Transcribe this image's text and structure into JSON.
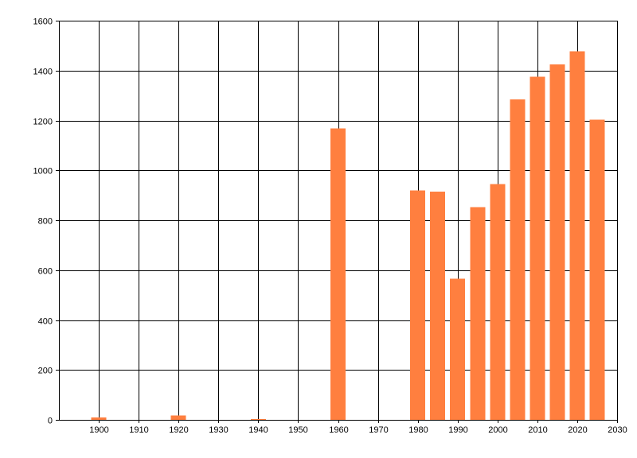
{
  "chart_data": {
    "type": "bar",
    "title": "",
    "xlabel": "",
    "ylabel": "",
    "xlim": [
      1890,
      2030
    ],
    "ylim": [
      0,
      1600
    ],
    "xticks": [
      "1900",
      "1910",
      "1920",
      "1930",
      "1940",
      "1950",
      "1960",
      "1970",
      "1980",
      "1990",
      "2000",
      "2010",
      "2020",
      "2030"
    ],
    "yticks": [
      "0",
      "200",
      "400",
      "600",
      "800",
      "1000",
      "1200",
      "1400",
      "1600"
    ],
    "grid": true,
    "bar_color": "#ff7f3f",
    "x": [
      1900,
      1920,
      1940,
      1960,
      1980,
      1985,
      1990,
      1995,
      2000,
      2005,
      2010,
      2015,
      2020,
      2025
    ],
    "values": [
      10,
      18,
      3,
      1168,
      920,
      915,
      565,
      852,
      945,
      1285,
      1375,
      1425,
      1478,
      1203
    ]
  }
}
